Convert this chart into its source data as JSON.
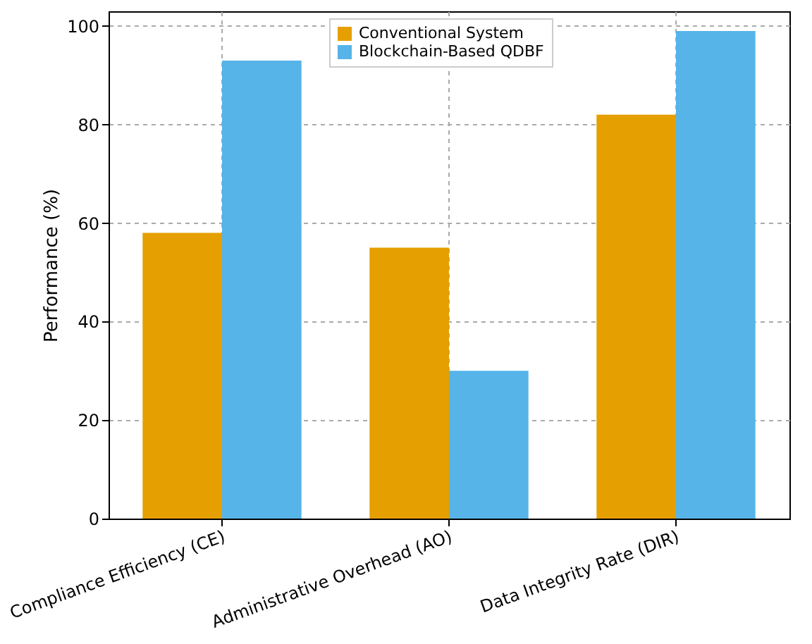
{
  "chart_data": {
    "type": "bar",
    "ylabel": "Performance (%)",
    "categories": [
      "Compliance Efficiency (CE)",
      "Administrative Overhead (AO)",
      "Data Integrity Rate (DIR)"
    ],
    "series": [
      {
        "name": "Conventional System",
        "color": "#e69f00",
        "values": [
          58,
          55,
          82
        ]
      },
      {
        "name": "Blockchain-Based QDBF",
        "color": "#56b4e9",
        "values": [
          93,
          30,
          99
        ]
      }
    ],
    "ylim": [
      0,
      103
    ],
    "yticks": [
      0,
      20,
      40,
      60,
      80,
      100
    ],
    "grid": true,
    "legend": "top"
  }
}
